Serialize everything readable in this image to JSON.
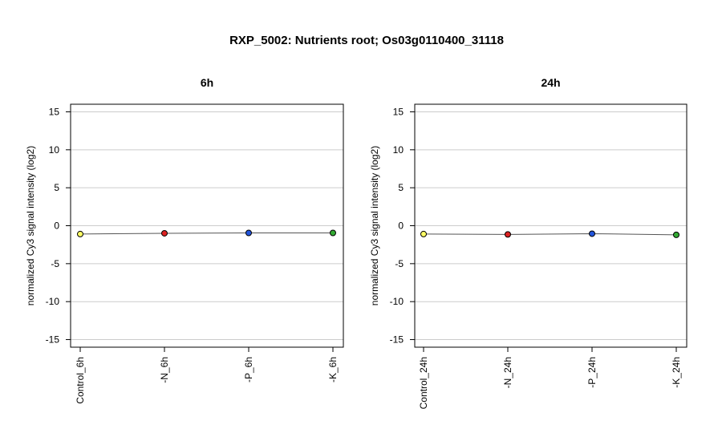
{
  "figure": {
    "title": "RXP_5002: Nutrients root; Os03g0110400_31118"
  },
  "chart_data": [
    {
      "type": "line",
      "title": "6h",
      "ylabel": "normalized Cy3 signal intensity (log2)",
      "categories": [
        "Control_6h",
        "-N_6h",
        "-P_6h",
        "-K_6h"
      ],
      "values": [
        -1.1,
        -1.0,
        -0.95,
        -0.95
      ],
      "point_colors": [
        "#ffff66",
        "#dd2222",
        "#2255dd",
        "#33aa33"
      ],
      "ylim": [
        -16,
        16
      ],
      "yticks": [
        -15,
        -10,
        -5,
        0,
        5,
        10,
        15
      ],
      "grid": true
    },
    {
      "type": "line",
      "title": "24h",
      "ylabel": "normalized Cy3 signal intensity (log2)",
      "categories": [
        "Control_24h",
        "-N_24h",
        "-P_24h",
        "-K_24h"
      ],
      "values": [
        -1.1,
        -1.15,
        -1.05,
        -1.2
      ],
      "point_colors": [
        "#ffff66",
        "#dd2222",
        "#2255dd",
        "#33aa33"
      ],
      "ylim": [
        -16,
        16
      ],
      "yticks": [
        -15,
        -10,
        -5,
        0,
        5,
        10,
        15
      ],
      "grid": true
    }
  ]
}
